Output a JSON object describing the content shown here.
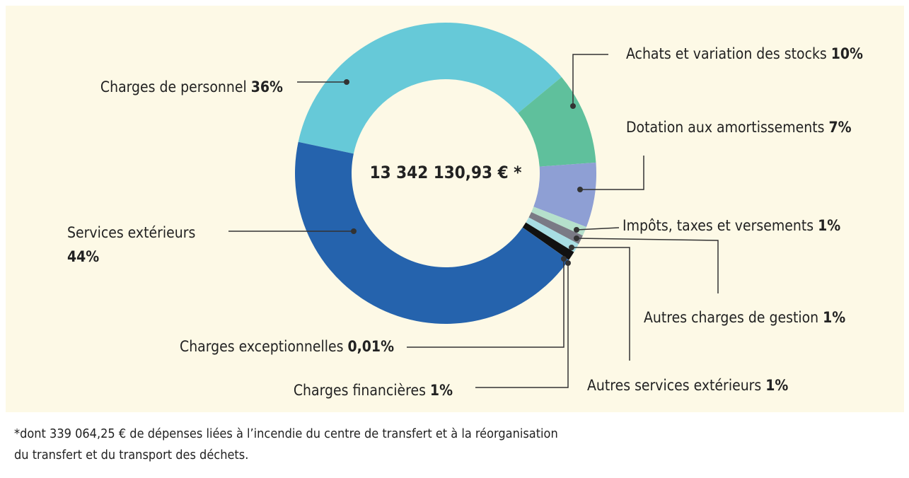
{
  "chart_data": {
    "type": "donut",
    "center_label": "13 342 130,93 € *",
    "categories": [
      "Charges de personnel",
      "Achats et variation des stocks",
      "Dotation aux amortissements",
      "Impôts, taxes et versements",
      "Autres charges de gestion",
      "Autres services extérieurs",
      "Charges financières",
      "Charges exceptionnelles",
      "Services extérieurs"
    ],
    "values": [
      36,
      10,
      7,
      1,
      1,
      1,
      1,
      0.01,
      44
    ],
    "value_labels": [
      "36%",
      "10%",
      "7%",
      "1%",
      "1%",
      "1%",
      "1%",
      "0,01%",
      "44%"
    ],
    "colors": [
      "#66c9d8",
      "#5fc09c",
      "#8e9fd4",
      "#b5e0cc",
      "#7a7a85",
      "#a8dde3",
      "#111111",
      "#222222",
      "#2563ad"
    ],
    "footnote": [
      "*dont 339 064,25 € de dépenses liées à l’incendie du centre de transfert et à la réorganisation",
      "du transfert et du transport des déchets."
    ]
  }
}
